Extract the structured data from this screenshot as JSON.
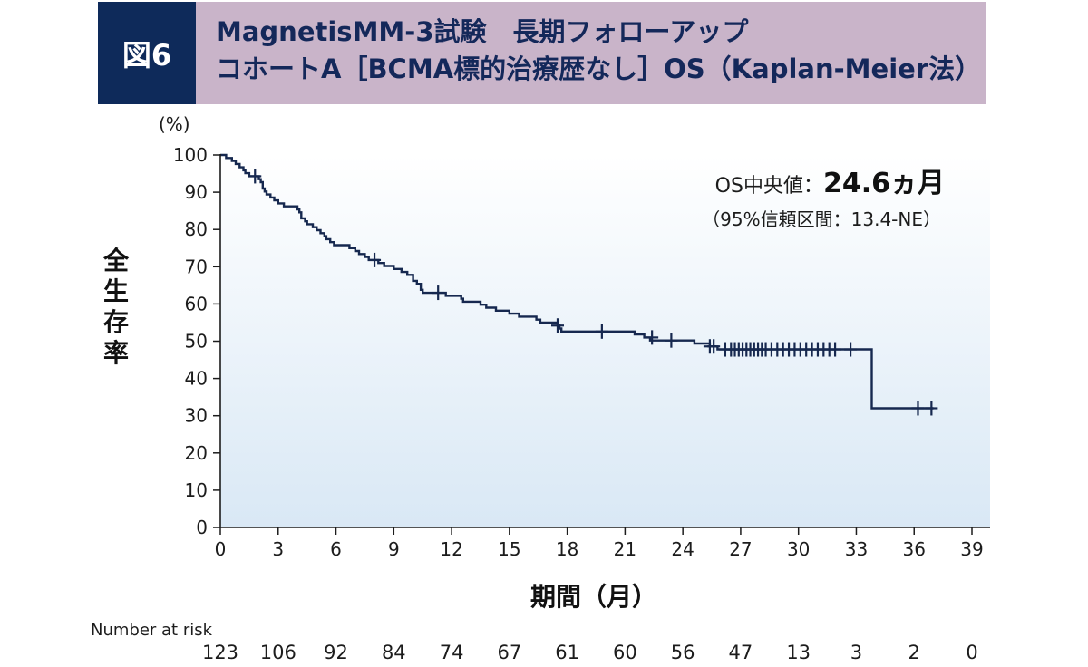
{
  "figure": {
    "badge": "図6",
    "title_line1": "MagnetisMM-3試験　長期フォローアップ",
    "title_line2": "コホートA［BCMA標的治療歴なし］OS（Kaplan-Meier法）"
  },
  "chart_data": {
    "type": "line",
    "subtype": "kaplan-meier",
    "ylabel": "全生存率",
    "yunit": "(%)",
    "xlabel": "期間（月）",
    "xlim": [
      0,
      39
    ],
    "ylim": [
      0,
      100
    ],
    "xticks": [
      0,
      3,
      6,
      9,
      12,
      15,
      18,
      21,
      24,
      27,
      30,
      33,
      36,
      39
    ],
    "yticks": [
      0,
      10,
      20,
      30,
      40,
      50,
      60,
      70,
      80,
      90,
      100
    ],
    "median": {
      "label": "OS中央値：",
      "value": "24.6ヵ月",
      "ci": "（95%信頼区間：13.4-NE）"
    },
    "series": [
      {
        "color": "#16284f",
        "steps": [
          [
            0,
            100
          ],
          [
            0.3,
            99.2
          ],
          [
            0.6,
            98.4
          ],
          [
            0.8,
            97.6
          ],
          [
            1.0,
            96.7
          ],
          [
            1.2,
            95.9
          ],
          [
            1.3,
            95.1
          ],
          [
            1.5,
            94.3
          ],
          [
            2.0,
            93.5
          ],
          [
            2.1,
            92.7
          ],
          [
            2.2,
            91.0
          ],
          [
            2.3,
            90.2
          ],
          [
            2.4,
            89.4
          ],
          [
            2.6,
            88.6
          ],
          [
            2.8,
            87.8
          ],
          [
            3.0,
            87.0
          ],
          [
            3.3,
            86.2
          ],
          [
            4.0,
            85.4
          ],
          [
            4.1,
            84.6
          ],
          [
            4.2,
            83.0
          ],
          [
            4.4,
            82.2
          ],
          [
            4.5,
            81.4
          ],
          [
            4.8,
            80.6
          ],
          [
            5.0,
            79.8
          ],
          [
            5.2,
            79.0
          ],
          [
            5.4,
            78.2
          ],
          [
            5.5,
            77.4
          ],
          [
            5.7,
            76.6
          ],
          [
            5.9,
            75.8
          ],
          [
            6.7,
            75.0
          ],
          [
            7.0,
            74.2
          ],
          [
            7.2,
            73.4
          ],
          [
            7.5,
            72.6
          ],
          [
            7.7,
            71.8
          ],
          [
            8.2,
            71.0
          ],
          [
            8.5,
            70.2
          ],
          [
            9.0,
            69.4
          ],
          [
            9.4,
            68.6
          ],
          [
            9.7,
            67.8
          ],
          [
            10.0,
            66.2
          ],
          [
            10.2,
            65.4
          ],
          [
            10.4,
            63.8
          ],
          [
            10.5,
            63.0
          ],
          [
            11.7,
            62.2
          ],
          [
            12.5,
            61.4
          ],
          [
            12.6,
            60.6
          ],
          [
            13.5,
            59.8
          ],
          [
            13.8,
            59.0
          ],
          [
            14.3,
            58.2
          ],
          [
            15.0,
            57.4
          ],
          [
            15.5,
            56.6
          ],
          [
            16.4,
            55.8
          ],
          [
            16.6,
            55.0
          ],
          [
            17.5,
            54.2
          ],
          [
            17.6,
            53.4
          ],
          [
            17.7,
            52.6
          ],
          [
            21.5,
            51.8
          ],
          [
            22.0,
            51.0
          ],
          [
            22.3,
            50.2
          ],
          [
            24.6,
            49.4
          ],
          [
            25.4,
            48.6
          ],
          [
            25.8,
            47.8
          ],
          [
            33.8,
            32.0
          ],
          [
            37.0,
            32.0
          ]
        ],
        "censored": [
          [
            1.8,
            94.3
          ],
          [
            8.0,
            71.8
          ],
          [
            11.3,
            63.0
          ],
          [
            17.5,
            54.2
          ],
          [
            19.8,
            52.6
          ],
          [
            22.4,
            51.0
          ],
          [
            23.4,
            50.2
          ],
          [
            25.4,
            48.6
          ],
          [
            25.6,
            48.6
          ],
          [
            26.2,
            47.8
          ],
          [
            26.5,
            47.8
          ],
          [
            26.7,
            47.8
          ],
          [
            26.9,
            47.8
          ],
          [
            27.1,
            47.8
          ],
          [
            27.3,
            47.8
          ],
          [
            27.5,
            47.8
          ],
          [
            27.7,
            47.8
          ],
          [
            27.9,
            47.8
          ],
          [
            28.1,
            47.8
          ],
          [
            28.3,
            47.8
          ],
          [
            28.6,
            47.8
          ],
          [
            28.9,
            47.8
          ],
          [
            29.2,
            47.8
          ],
          [
            29.5,
            47.8
          ],
          [
            29.8,
            47.8
          ],
          [
            30.1,
            47.8
          ],
          [
            30.4,
            47.8
          ],
          [
            30.7,
            47.8
          ],
          [
            31.0,
            47.8
          ],
          [
            31.3,
            47.8
          ],
          [
            31.6,
            47.8
          ],
          [
            31.9,
            47.8
          ],
          [
            32.7,
            47.8
          ],
          [
            36.2,
            32.0
          ],
          [
            36.9,
            32.0
          ]
        ]
      }
    ],
    "at_risk": {
      "title": "Number at risk",
      "times": [
        0,
        3,
        6,
        9,
        12,
        15,
        18,
        21,
        24,
        27,
        30,
        33,
        36,
        39
      ],
      "counts": [
        123,
        106,
        92,
        84,
        74,
        67,
        61,
        60,
        56,
        47,
        13,
        3,
        2,
        0
      ]
    }
  }
}
